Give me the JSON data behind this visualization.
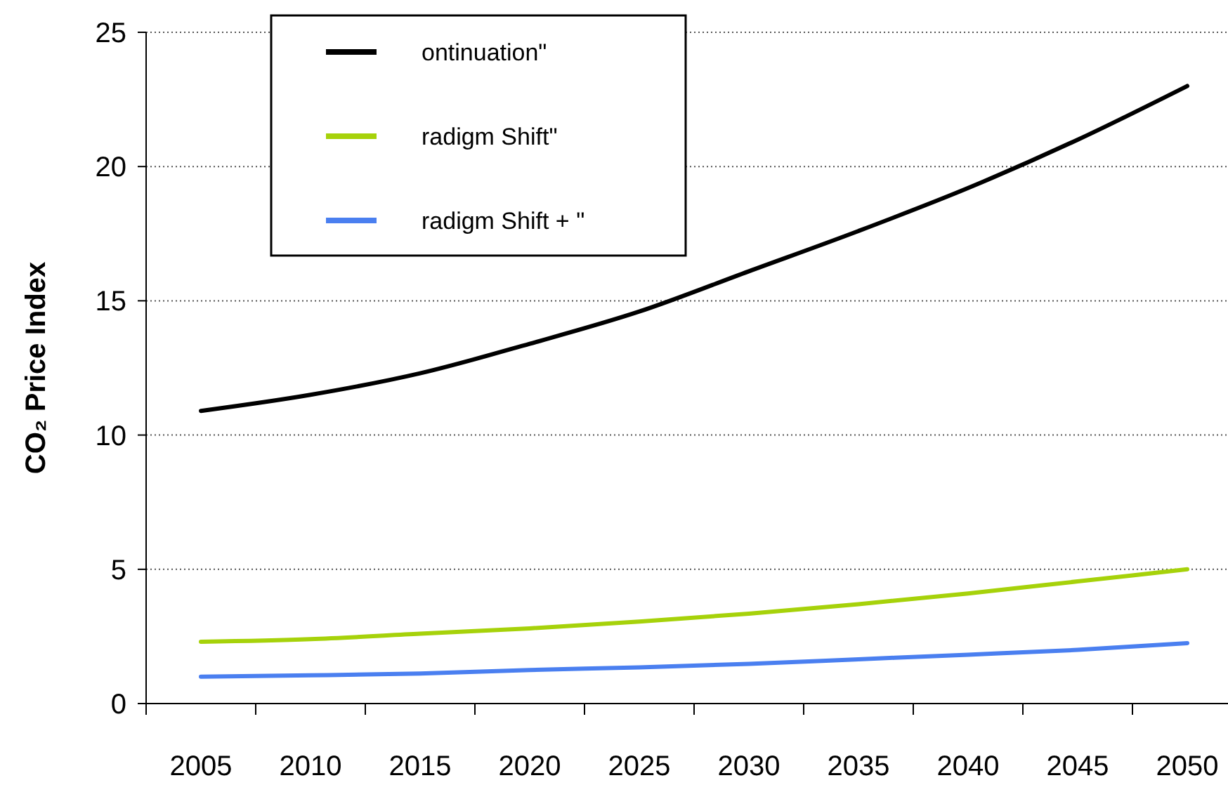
{
  "chart_data": {
    "type": "line",
    "ylabel": "CO₂ Price Index",
    "categories": [
      "2005",
      "2010",
      "2015",
      "2020",
      "2025",
      "2030",
      "2035",
      "2040",
      "2045",
      "2050"
    ],
    "series": [
      {
        "name": "ontinuation\"",
        "color": "#000000",
        "values": [
          10.9,
          11.5,
          12.3,
          13.4,
          14.6,
          16.1,
          17.6,
          19.2,
          21.0,
          23.0
        ]
      },
      {
        "name": "radigm Shift\"",
        "color": "#a6d20a",
        "values": [
          2.3,
          2.4,
          2.6,
          2.8,
          3.05,
          3.35,
          3.7,
          4.1,
          4.55,
          5.0
        ]
      },
      {
        "name": "radigm Shift + \"",
        "color": "#4a7ff0",
        "values": [
          1.0,
          1.05,
          1.12,
          1.25,
          1.35,
          1.48,
          1.65,
          1.82,
          2.0,
          2.25
        ]
      }
    ],
    "ylim": [
      0,
      25
    ],
    "yticks": [
      0,
      5,
      10,
      15,
      20,
      25
    ],
    "grid": "y",
    "legend": "top",
    "marker": "none",
    "line_style": "solid"
  }
}
